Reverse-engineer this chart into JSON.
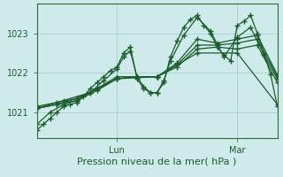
{
  "background_color": "#ceeaea",
  "grid_color": "#aacece",
  "line_color": "#1a5c2a",
  "marker": "+",
  "markersize": 4,
  "linewidth": 0.9,
  "xlabel": "Pression niveau de la mer( hPa )",
  "xlabel_fontsize": 8,
  "tick_fontsize": 7,
  "ylim": [
    1020.35,
    1023.75
  ],
  "yticks": [
    1021,
    1022,
    1023
  ],
  "xlim": [
    0,
    72
  ],
  "xtick_positions": [
    24,
    60
  ],
  "xtick_labels": [
    "Lun",
    "Mar"
  ],
  "series": [
    {
      "x": [
        0,
        2,
        4,
        6,
        8,
        10,
        12,
        14,
        16,
        18,
        20,
        22,
        24,
        26,
        28,
        30,
        32,
        34,
        36,
        38,
        40,
        42,
        44,
        46,
        48,
        50,
        52,
        54,
        56,
        58,
        60,
        62,
        64,
        66,
        68,
        70,
        72
      ],
      "y": [
        1020.55,
        1020.7,
        1020.85,
        1021.0,
        1021.15,
        1021.2,
        1021.25,
        1021.4,
        1021.6,
        1021.75,
        1021.9,
        1022.05,
        1022.15,
        1022.5,
        1022.65,
        1021.85,
        1021.6,
        1021.5,
        1021.5,
        1021.75,
        1022.4,
        1022.8,
        1023.15,
        1023.35,
        1023.45,
        1023.2,
        1023.0,
        1022.65,
        1022.45,
        1022.3,
        1023.2,
        1023.3,
        1023.45,
        1023.0,
        1022.5,
        1021.95,
        1021.15
      ]
    },
    {
      "x": [
        0,
        4,
        8,
        12,
        16,
        20,
        24,
        26,
        28,
        30,
        32,
        34,
        36,
        38,
        40,
        44,
        48,
        52,
        56,
        60,
        64,
        68,
        72
      ],
      "y": [
        1020.7,
        1021.0,
        1021.2,
        1021.3,
        1021.5,
        1021.8,
        1022.1,
        1022.4,
        1022.55,
        1021.9,
        1021.65,
        1021.5,
        1021.5,
        1021.8,
        1022.3,
        1022.95,
        1023.4,
        1023.05,
        1022.4,
        1022.9,
        1023.15,
        1022.45,
        1021.85
      ]
    },
    {
      "x": [
        0,
        6,
        12,
        18,
        24,
        30,
        36,
        42,
        48,
        54,
        60,
        66,
        72
      ],
      "y": [
        1021.1,
        1021.2,
        1021.3,
        1021.55,
        1021.85,
        1021.9,
        1021.9,
        1022.15,
        1022.6,
        1022.65,
        1022.6,
        1022.7,
        1021.75
      ]
    },
    {
      "x": [
        0,
        6,
        12,
        18,
        24,
        30,
        36,
        42,
        48,
        54,
        60,
        66,
        72
      ],
      "y": [
        1021.1,
        1021.2,
        1021.35,
        1021.6,
        1021.85,
        1021.9,
        1021.9,
        1022.2,
        1022.7,
        1022.7,
        1022.75,
        1022.85,
        1021.9
      ]
    },
    {
      "x": [
        0,
        8,
        16,
        24,
        36,
        48,
        60,
        72
      ],
      "y": [
        1021.1,
        1021.3,
        1021.5,
        1021.85,
        1021.9,
        1022.5,
        1022.5,
        1021.2
      ]
    },
    {
      "x": [
        0,
        6,
        12,
        18,
        24,
        30,
        36,
        42,
        48,
        54,
        60,
        66,
        72
      ],
      "y": [
        1021.15,
        1021.25,
        1021.35,
        1021.6,
        1021.9,
        1021.9,
        1021.9,
        1022.25,
        1022.85,
        1022.75,
        1022.85,
        1022.95,
        1021.95
      ]
    }
  ]
}
